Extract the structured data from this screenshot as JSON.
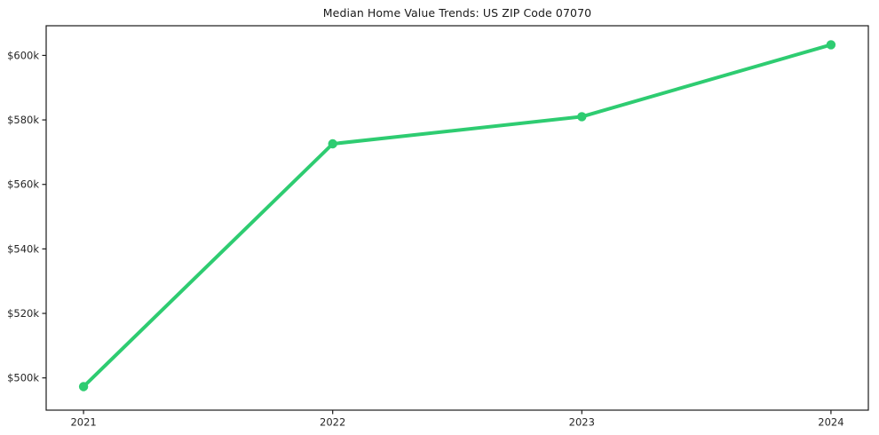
{
  "figure": {
    "title": "Median Home Value Trends: US ZIP Code 07070"
  },
  "colors": {
    "line": "#2ecc71",
    "axis": "#1a1a1a",
    "text": "#262626",
    "background": "#ffffff"
  },
  "chart_data": {
    "type": "line",
    "title": "Median Home Value Trends: US ZIP Code 07070",
    "xlabel": "",
    "ylabel": "",
    "x": [
      2021,
      2022,
      2023,
      2024
    ],
    "x_tick_labels": [
      "2021",
      "2022",
      "2023",
      "2024"
    ],
    "series": [
      {
        "name": "Median Home Value",
        "color": "#2ecc71",
        "values": [
          497300,
          572600,
          581000,
          603300
        ]
      }
    ],
    "y_ticks": [
      {
        "value": 500000,
        "label": "$500k"
      },
      {
        "value": 520000,
        "label": "$520k"
      },
      {
        "value": 540000,
        "label": "$540k"
      },
      {
        "value": 560000,
        "label": "$560k"
      },
      {
        "value": 580000,
        "label": "$580k"
      },
      {
        "value": 600000,
        "label": "$600k"
      }
    ],
    "xlim": [
      2020.85,
      2024.15
    ],
    "ylim": [
      490000,
      609200
    ],
    "grid": false,
    "legend": "none",
    "marker": "circle"
  }
}
